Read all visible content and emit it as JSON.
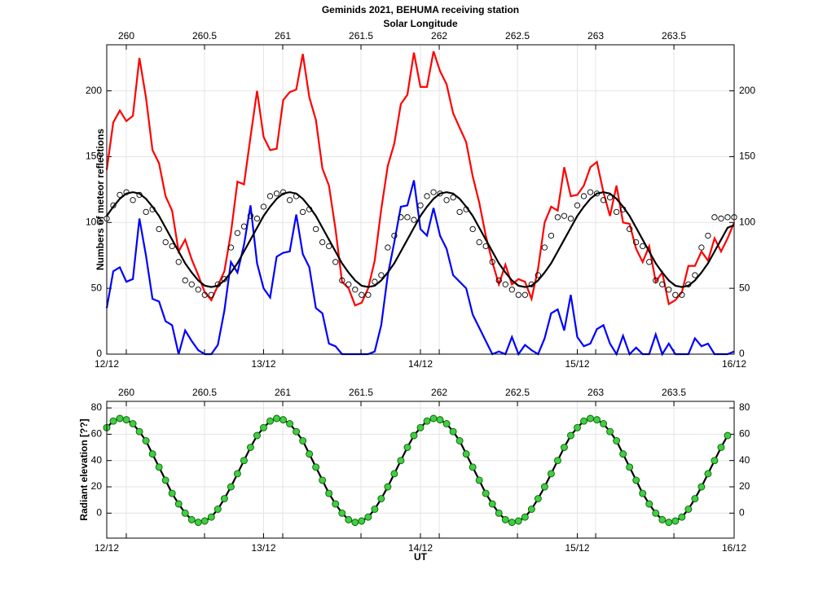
{
  "chart_data": [
    {
      "type": "line",
      "title": "Geminids 2021, BEHUMA receiving station",
      "x2label": "Solar Longitude",
      "ylabel": "Numbers of meteor reflections",
      "grid": true,
      "x": [
        0,
        1,
        2,
        3,
        4,
        5,
        6,
        7,
        8,
        9,
        10,
        11,
        12,
        13,
        14,
        15,
        16,
        17,
        18,
        19,
        20,
        21,
        22,
        23,
        24,
        25,
        26,
        27,
        28,
        29,
        30,
        31,
        32,
        33,
        34,
        35,
        36,
        37,
        38,
        39,
        40,
        41,
        42,
        43,
        44,
        45,
        46,
        47,
        48,
        49,
        50,
        51,
        52,
        53,
        54,
        55,
        56,
        57,
        58,
        59,
        60,
        61,
        62,
        63,
        64,
        65,
        66,
        67,
        68,
        69,
        70,
        71,
        72,
        73,
        74,
        75,
        76,
        77,
        78,
        79,
        80,
        81,
        82,
        83,
        84,
        85,
        86,
        87,
        88,
        89,
        90,
        91,
        92,
        93,
        94,
        95,
        96
      ],
      "xlim": [
        0,
        96
      ],
      "xticks": [
        {
          "value": 0,
          "label": "12/12"
        },
        {
          "value": 24,
          "label": "13/12"
        },
        {
          "value": 48,
          "label": "14/12"
        },
        {
          "value": 72,
          "label": "15/12"
        },
        {
          "value": 96,
          "label": "16/12"
        }
      ],
      "x2lim": [
        259.875,
        263.885
      ],
      "x2ticks": [
        260,
        260.5,
        261,
        261.5,
        262,
        262.5,
        263,
        263.5
      ],
      "ylim": [
        0,
        235
      ],
      "yticks": [
        0,
        50,
        100,
        150,
        200
      ],
      "series": [
        {
          "color": "#ff0000",
          "line": true,
          "values": [
            140,
            176,
            185,
            177,
            181,
            225,
            195,
            155,
            145,
            120,
            109,
            78,
            87,
            72,
            60,
            47,
            41,
            52,
            63,
            92,
            131,
            129,
            165,
            200,
            165,
            155,
            156,
            193,
            199,
            201,
            228,
            195,
            178,
            141,
            128,
            95,
            55,
            50,
            37,
            39,
            50,
            71,
            110,
            143,
            160,
            190,
            197,
            229,
            203,
            203,
            230,
            215,
            205,
            183,
            172,
            161,
            135,
            115,
            90,
            70,
            53,
            68,
            53,
            57,
            55,
            42,
            65,
            100,
            112,
            109,
            142,
            120,
            121,
            128,
            142,
            146,
            123,
            105,
            128,
            100,
            99,
            80,
            70,
            82,
            55,
            62,
            38,
            41,
            47,
            67,
            67,
            78,
            71,
            88,
            78,
            88,
            100
          ]
        },
        {
          "color": "#0000ff",
          "line": true,
          "values": [
            35,
            63,
            66,
            55,
            57,
            103,
            75,
            42,
            40,
            25,
            22,
            0,
            18,
            10,
            3,
            0,
            0,
            7,
            33,
            70,
            62,
            83,
            113,
            69,
            50,
            43,
            74,
            77,
            78,
            106,
            76,
            66,
            35,
            31,
            8,
            6,
            0,
            0,
            0,
            0,
            0,
            2,
            22,
            60,
            85,
            112,
            113,
            132,
            95,
            90,
            111,
            90,
            80,
            60,
            55,
            50,
            30,
            20,
            10,
            0,
            2,
            0,
            13,
            0,
            7,
            3,
            0,
            12,
            31,
            34,
            18,
            45,
            13,
            6,
            8,
            19,
            22,
            8,
            0,
            14,
            0,
            5,
            0,
            0,
            15,
            0,
            8,
            0,
            0,
            0,
            12,
            6,
            8,
            0,
            0,
            0,
            2
          ]
        },
        {
          "color": "#000000",
          "marker": "circle",
          "marker_fill": "none",
          "values": [
            103,
            113,
            121,
            123,
            117,
            121,
            108,
            110,
            95,
            85,
            82,
            70,
            56,
            53,
            49,
            45,
            45,
            53,
            57,
            81,
            92,
            97,
            105,
            103,
            112,
            120,
            122,
            123,
            117,
            120,
            108,
            110,
            95,
            85,
            82,
            70,
            56,
            53,
            49,
            45,
            45,
            55,
            60,
            81,
            90,
            104,
            104,
            102,
            113,
            120,
            123,
            122,
            117,
            119,
            108,
            110,
            95,
            85,
            82,
            70,
            56,
            53,
            49,
            45,
            45,
            53,
            60,
            81,
            90,
            104,
            105,
            103,
            113,
            120,
            123,
            122,
            117,
            119,
            108,
            110,
            95,
            85,
            82,
            70,
            56,
            53,
            49,
            45,
            45,
            53,
            60,
            81,
            90,
            104,
            103,
            104,
            104
          ]
        },
        {
          "color": "#000000",
          "line": true,
          "values": [
            105,
            112,
            118,
            122,
            123,
            122,
            118,
            112,
            105,
            96,
            87,
            78,
            69,
            62,
            56,
            52,
            51,
            52,
            56,
            62,
            69,
            78,
            87,
            96,
            105,
            112,
            118,
            122,
            123,
            122,
            118,
            112,
            105,
            96,
            87,
            78,
            69,
            62,
            56,
            52,
            51,
            52,
            56,
            62,
            69,
            78,
            87,
            96,
            105,
            112,
            118,
            122,
            123,
            122,
            118,
            112,
            105,
            96,
            87,
            78,
            69,
            62,
            56,
            52,
            51,
            52,
            56,
            62,
            69,
            78,
            87,
            96,
            105,
            112,
            118,
            122,
            123,
            122,
            118,
            112,
            105,
            96,
            87,
            78,
            69,
            62,
            56,
            52,
            51,
            52,
            56,
            62,
            69,
            78,
            87,
            96,
            98
          ]
        }
      ]
    },
    {
      "type": "line",
      "ylabel": "Radiant elevation [??]",
      "xlabel": "UT",
      "grid": true,
      "xlim": [
        0,
        96
      ],
      "xticks": [
        {
          "value": 0,
          "label": "12/12"
        },
        {
          "value": 24,
          "label": "13/12"
        },
        {
          "value": 48,
          "label": "14/12"
        },
        {
          "value": 72,
          "label": "15/12"
        },
        {
          "value": 96,
          "label": "16/12"
        }
      ],
      "x2lim": [
        259.875,
        263.885
      ],
      "x2ticks": [
        260,
        260.5,
        261,
        261.5,
        262,
        262.5,
        263,
        263.5
      ],
      "ylim": [
        -19,
        85
      ],
      "yticks": [
        0,
        20,
        40,
        60,
        80
      ],
      "series": [
        {
          "color": "#000000",
          "line": true,
          "marker": "circle",
          "marker_fill": "#44cc44",
          "marker_edge": "#006600",
          "values": [
            65,
            70,
            72,
            71,
            68,
            62,
            55,
            45,
            35,
            25,
            15,
            7,
            0,
            -5,
            -7,
            -6,
            -3,
            3,
            11,
            20,
            30,
            40,
            50,
            59,
            65,
            70,
            72,
            71,
            68,
            62,
            55,
            45,
            35,
            25,
            15,
            7,
            0,
            -5,
            -7,
            -6,
            -3,
            3,
            11,
            20,
            30,
            40,
            50,
            59,
            65,
            70,
            72,
            71,
            68,
            62,
            55,
            45,
            35,
            25,
            15,
            7,
            0,
            -5,
            -7,
            -6,
            -3,
            3,
            11,
            20,
            30,
            40,
            50,
            59,
            65,
            70,
            72,
            71,
            68,
            62,
            55,
            45,
            35,
            25,
            15,
            7,
            0,
            -5,
            -7,
            -6,
            -3,
            3,
            11,
            20,
            30,
            40,
            50,
            59
          ]
        }
      ]
    }
  ]
}
